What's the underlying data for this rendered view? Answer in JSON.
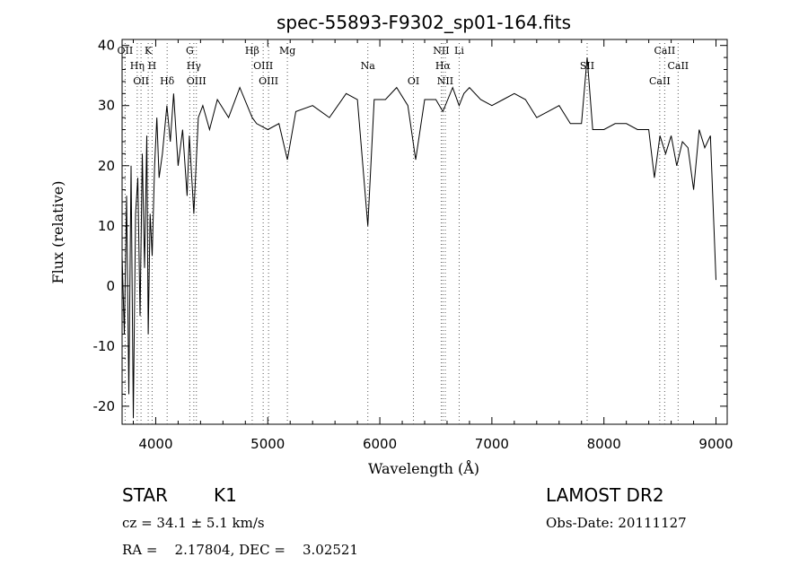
{
  "chart_data": {
    "type": "line",
    "title": "spec-55893-F9302_sp01-164.fits",
    "xlabel": "Wavelength (Å)",
    "ylabel": "Flux (relative)",
    "xlim": [
      3700,
      9100
    ],
    "ylim": [
      -23,
      41
    ],
    "xticks": [
      4000,
      5000,
      6000,
      7000,
      8000,
      9000
    ],
    "yticks": [
      -20,
      -10,
      0,
      10,
      20,
      30,
      40
    ],
    "grid": false,
    "series": [
      {
        "x": [
          3700,
          3720,
          3740,
          3760,
          3780,
          3800,
          3820,
          3840,
          3860,
          3880,
          3900,
          3920,
          3933,
          3950,
          3968,
          3990,
          4010,
          4030,
          4060,
          4100,
          4130,
          4160,
          4200,
          4240,
          4280,
          4300,
          4340,
          4380,
          4420,
          4480,
          4550,
          4650,
          4750,
          4861,
          4900,
          5000,
          5100,
          5175,
          5250,
          5400,
          5550,
          5700,
          5800,
          5893,
          5950,
          6050,
          6150,
          6250,
          6320,
          6400,
          6500,
          6563,
          6650,
          6708,
          6750,
          6800,
          6900,
          7000,
          7100,
          7200,
          7300,
          7400,
          7500,
          7600,
          7700,
          7800,
          7850,
          7900,
          8000,
          8100,
          8200,
          8300,
          8400,
          8450,
          8500,
          8550,
          8600,
          8650,
          8700,
          8750,
          8800,
          8850,
          8900,
          8950,
          9000
        ],
        "y": [
          5,
          -8,
          15,
          -18,
          20,
          -22,
          12,
          18,
          -5,
          22,
          3,
          25,
          -8,
          12,
          5,
          20,
          28,
          18,
          22,
          30,
          24,
          32,
          20,
          26,
          15,
          25,
          12,
          28,
          30,
          26,
          31,
          28,
          33,
          28,
          27,
          26,
          27,
          21,
          29,
          30,
          28,
          32,
          31,
          10,
          31,
          31,
          33,
          30,
          21,
          31,
          31,
          29,
          33,
          30,
          32,
          33,
          31,
          30,
          31,
          32,
          31,
          28,
          29,
          30,
          27,
          27,
          38,
          26,
          26,
          27,
          27,
          26,
          26,
          18,
          25,
          22,
          25,
          20,
          24,
          23,
          16,
          26,
          23,
          25,
          1
        ]
      }
    ],
    "line_marks": [
      {
        "label": "OII",
        "x": 3727
      },
      {
        "label": "Hη",
        "x": 3835
      },
      {
        "label": "OII",
        "x": 3869
      },
      {
        "label": "K",
        "x": 3933
      },
      {
        "label": "H",
        "x": 3968
      },
      {
        "label": "Hδ",
        "x": 4102
      },
      {
        "label": "G",
        "x": 4304
      },
      {
        "label": "Hγ",
        "x": 4340
      },
      {
        "label": "OIII",
        "x": 4363
      },
      {
        "label": "Hβ",
        "x": 4861
      },
      {
        "label": "OIII",
        "x": 4959
      },
      {
        "label": "OIII",
        "x": 5007
      },
      {
        "label": "Mg",
        "x": 5175
      },
      {
        "label": "Na",
        "x": 5893
      },
      {
        "label": "OI",
        "x": 6300
      },
      {
        "label": "NII",
        "x": 6548
      },
      {
        "label": "Hα",
        "x": 6563
      },
      {
        "label": "NII",
        "x": 6584
      },
      {
        "label": "Li",
        "x": 6708
      },
      {
        "label": "SII",
        "x": 7850
      },
      {
        "label": "CaII",
        "x": 8498
      },
      {
        "label": "CaII",
        "x": 8542
      },
      {
        "label": "CaII",
        "x": 8662
      }
    ]
  },
  "info": {
    "object_class": "STAR",
    "subclass": "K1",
    "survey": "LAMOST DR2",
    "redshift": "cz = 34.1 ± 5.1 km/s",
    "obs_date": "Obs-Date: 20111127",
    "coords": "RA =    2.17804, DEC =    3.02521"
  }
}
